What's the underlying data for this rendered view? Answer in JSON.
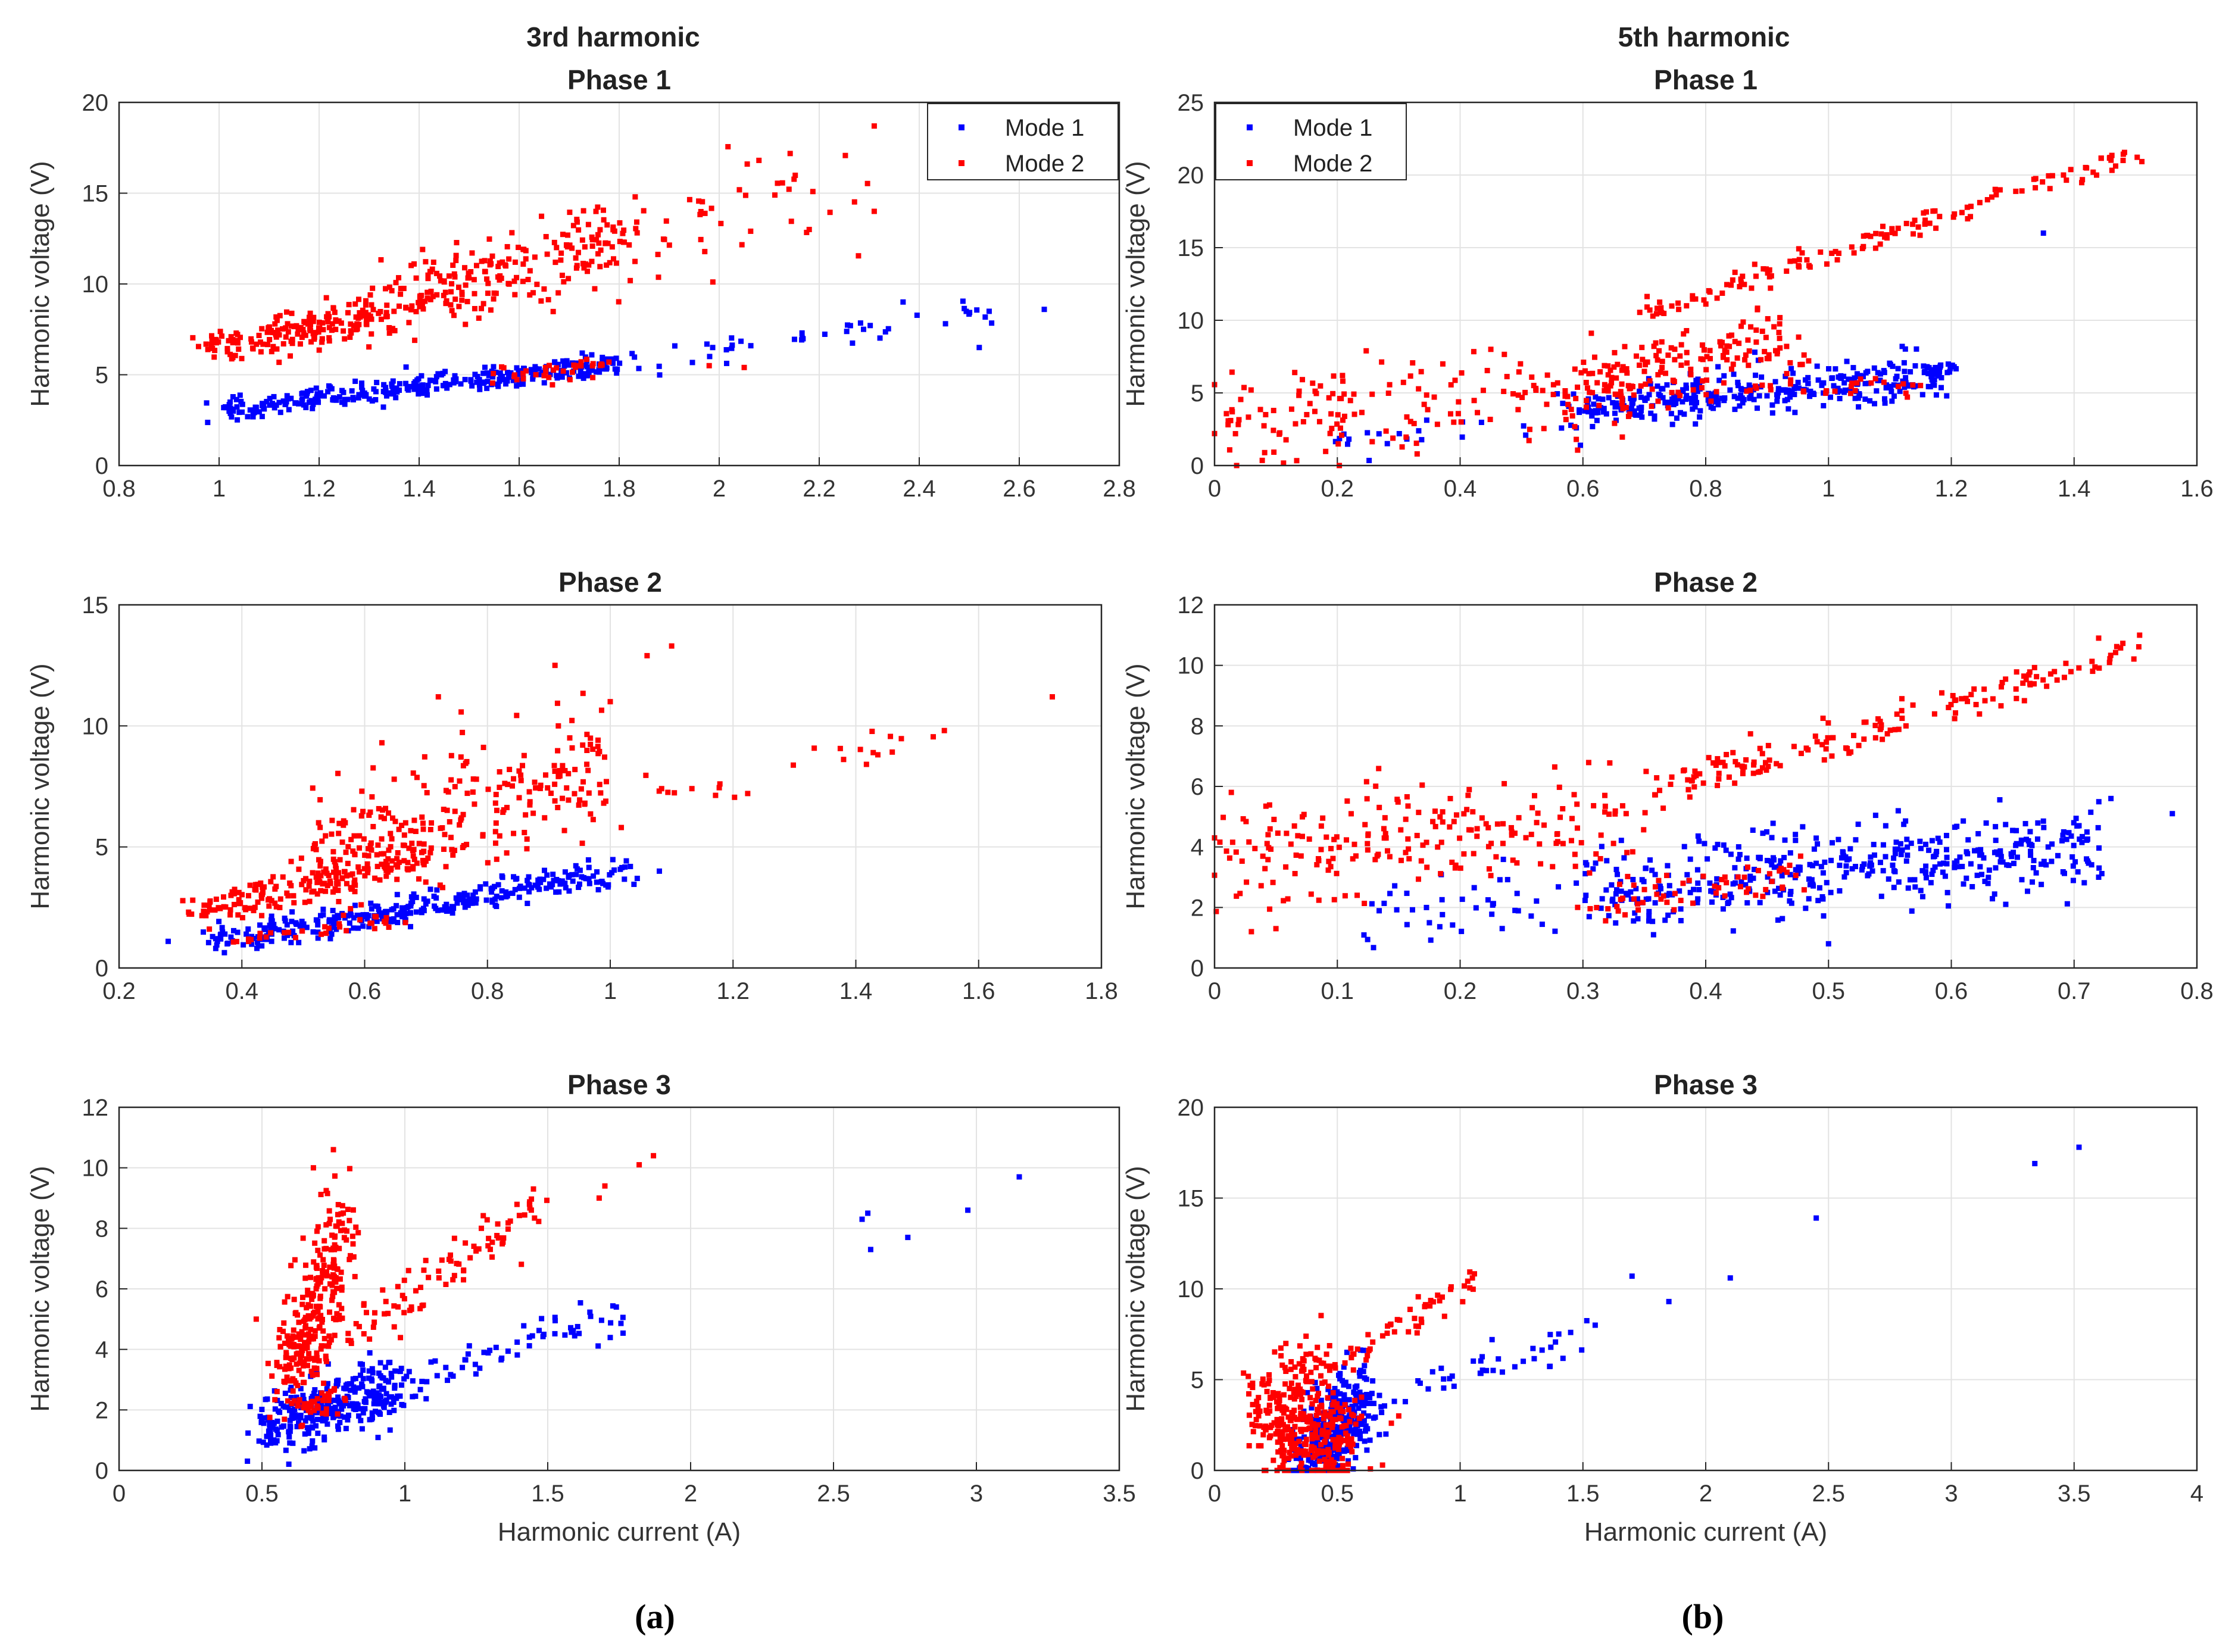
{
  "figure": {
    "panel_labels": [
      "(a)",
      "(b)"
    ],
    "column_titles": [
      "3rd harmonic",
      "5th harmonic"
    ]
  },
  "colors": {
    "mode1": "#0000ff",
    "mode2": "#ff0000",
    "grid": "#e3e3e3",
    "axis": "#262626"
  },
  "chart_data": [
    {
      "type": "scatter",
      "column_title": "3rd harmonic",
      "title": "Phase 1",
      "xlabel": "",
      "ylabel": "Harmonic voltage (V)",
      "xlim": [
        0.8,
        2.8
      ],
      "ylim": [
        0,
        20
      ],
      "xticks": [
        "0.8",
        "1",
        "1.2",
        "1.4",
        "1.6",
        "1.8",
        "2",
        "2.2",
        "2.4",
        "2.6",
        "2.8"
      ],
      "yticks": [
        "0",
        "5",
        "10",
        "15",
        "20"
      ],
      "legend": {
        "position": "top-right",
        "entries": [
          "Mode 1",
          "Mode 2"
        ]
      },
      "series": [
        {
          "name": "Mode 1",
          "color": "#0000ff",
          "clusters": [
            {
              "x0": 1.0,
              "x1": 1.8,
              "y0": 3.1,
              "y1": 5.6,
              "n": 320,
              "noise": 0.3
            },
            {
              "x0": 1.8,
              "x1": 2.55,
              "y0": 5.6,
              "y1": 8.6,
              "n": 45,
              "noise": 0.4
            }
          ],
          "points": [
            [
              2.65,
              8.6
            ],
            [
              2.52,
              6.5
            ]
          ]
        },
        {
          "name": "Mode 2",
          "color": "#ff0000",
          "clusters": [
            {
              "x0": 0.98,
              "x1": 1.3,
              "y0": 6.4,
              "y1": 8.3,
              "n": 170,
              "noise": 0.55
            },
            {
              "x0": 1.3,
              "x1": 1.8,
              "y0": 8.5,
              "y1": 12.5,
              "n": 230,
              "noise": 1.1
            },
            {
              "x0": 1.82,
              "x1": 2.3,
              "y0": 13.0,
              "y1": 15.5,
              "n": 45,
              "noise": 1.6
            },
            {
              "x0": 1.5,
              "x1": 1.78,
              "y0": 4.6,
              "y1": 5.6,
              "n": 35,
              "noise": 0.3
            }
          ],
          "points": [
            [
              2.31,
              18.7
            ],
            [
              2.31,
              14.0
            ],
            [
              2.18,
              13.0
            ],
            [
              2.05,
              5.4
            ],
            [
              1.98,
              5.5
            ]
          ]
        }
      ]
    },
    {
      "type": "scatter",
      "column_title": "5th harmonic",
      "title": "Phase 1",
      "xlabel": "",
      "ylabel": "Harmonic voltage (V)",
      "xlim": [
        0,
        1.6
      ],
      "ylim": [
        0,
        25
      ],
      "xticks": [
        "0",
        "0.2",
        "0.4",
        "0.6",
        "0.8",
        "1",
        "1.2",
        "1.4",
        "1.6"
      ],
      "yticks": [
        "0",
        "5",
        "10",
        "15",
        "20",
        "25"
      ],
      "legend": {
        "position": "top-left",
        "entries": [
          "Mode 1",
          "Mode 2"
        ]
      },
      "series": [
        {
          "name": "Mode 1",
          "color": "#0000ff",
          "clusters": [
            {
              "x0": 0.6,
              "x1": 1.2,
              "y0": 3.8,
              "y1": 6.3,
              "n": 360,
              "noise": 0.65
            },
            {
              "x0": 0.2,
              "x1": 0.6,
              "y0": 1.5,
              "y1": 3.8,
              "n": 25,
              "noise": 0.8
            }
          ],
          "points": [
            [
              1.12,
              8.2
            ],
            [
              0.88,
              7.8
            ],
            [
              0.82,
              6.8
            ],
            [
              1.35,
              16.0
            ]
          ]
        },
        {
          "name": "Mode 2",
          "color": "#ff0000",
          "clusters": [
            {
              "x0": 0.0,
              "x1": 0.6,
              "y0": 3.0,
              "y1": 5.0,
              "n": 140,
              "noise": 1.6
            },
            {
              "x0": 0.58,
              "x1": 0.95,
              "y0": 5.0,
              "y1": 9.0,
              "n": 180,
              "noise": 1.5
            },
            {
              "x0": 0.7,
              "x1": 1.5,
              "y0": 10.5,
              "y1": 21.5,
              "n": 140,
              "noise": 0.35
            },
            {
              "x0": 0.9,
              "x1": 1.15,
              "y0": 5.0,
              "y1": 5.8,
              "n": 25,
              "noise": 0.4
            }
          ],
          "points": [
            [
              0.0,
              2.2
            ],
            [
              0.33,
              0.8
            ],
            [
              0.45,
              8.0
            ]
          ]
        }
      ]
    },
    {
      "type": "scatter",
      "column_title": "3rd harmonic",
      "title": "Phase 2",
      "xlabel": "",
      "ylabel": "Harmonic voltage (V)",
      "xlim": [
        0.2,
        1.8
      ],
      "ylim": [
        0,
        15
      ],
      "xticks": [
        "0.2",
        "0.4",
        "0.6",
        "0.8",
        "1",
        "1.2",
        "1.4",
        "1.6",
        "1.8"
      ],
      "yticks": [
        "0",
        "5",
        "10",
        "15"
      ],
      "series": [
        {
          "name": "Mode 1",
          "color": "#0000ff",
          "clusters": [
            {
              "x0": 0.35,
              "x1": 1.02,
              "y0": 1.0,
              "y1": 4.0,
              "n": 320,
              "noise": 0.3
            }
          ],
          "points": [
            [
              0.28,
              1.1
            ],
            [
              1.08,
              4.0
            ]
          ]
        },
        {
          "name": "Mode 2",
          "color": "#ff0000",
          "clusters": [
            {
              "x0": 0.33,
              "x1": 0.7,
              "y0": 2.3,
              "y1": 4.7,
              "n": 170,
              "noise": 0.35
            },
            {
              "x0": 0.5,
              "x1": 1.0,
              "y0": 4.5,
              "y1": 8.5,
              "n": 260,
              "noise": 1.2
            },
            {
              "x0": 1.0,
              "x1": 1.55,
              "y0": 7.0,
              "y1": 9.8,
              "n": 25,
              "noise": 0.5
            },
            {
              "x0": 0.38,
              "x1": 0.65,
              "y0": 1.1,
              "y1": 1.9,
              "n": 30,
              "noise": 0.2
            }
          ],
          "points": [
            [
              1.72,
              11.2
            ],
            [
              1.1,
              13.3
            ],
            [
              1.06,
              12.9
            ],
            [
              0.91,
              12.5
            ],
            [
              0.72,
              11.2
            ],
            [
              0.32,
              2.8
            ],
            [
              1.0,
              11.0
            ]
          ]
        }
      ]
    },
    {
      "type": "scatter",
      "column_title": "5th harmonic",
      "title": "Phase 2",
      "xlabel": "",
      "ylabel": "Harmonic voltage (V)",
      "xlim": [
        0,
        0.8
      ],
      "ylim": [
        0,
        12
      ],
      "xticks": [
        "0",
        "0.1",
        "0.2",
        "0.3",
        "0.4",
        "0.5",
        "0.6",
        "0.7",
        "0.8"
      ],
      "yticks": [
        "0",
        "2",
        "4",
        "6",
        "8",
        "10",
        "12"
      ],
      "series": [
        {
          "name": "Mode 1",
          "color": "#0000ff",
          "clusters": [
            {
              "x0": 0.3,
              "x1": 0.72,
              "y0": 2.5,
              "y1": 4.0,
              "n": 420,
              "noise": 0.65
            },
            {
              "x0": 0.12,
              "x1": 0.3,
              "y0": 1.5,
              "y1": 2.5,
              "n": 40,
              "noise": 0.55
            }
          ],
          "points": [
            [
              0.78,
              5.1
            ],
            [
              0.73,
              5.6
            ],
            [
              0.72,
              3.0
            ],
            [
              0.5,
              0.8
            ]
          ]
        },
        {
          "name": "Mode 2",
          "color": "#ff0000",
          "clusters": [
            {
              "x0": 0.0,
              "x1": 0.35,
              "y0": 3.5,
              "y1": 5.2,
              "n": 210,
              "noise": 0.9
            },
            {
              "x0": 0.35,
              "x1": 0.75,
              "y0": 5.7,
              "y1": 10.5,
              "n": 160,
              "noise": 0.3
            },
            {
              "x0": 0.3,
              "x1": 0.48,
              "y0": 2.2,
              "y1": 3.0,
              "n": 60,
              "noise": 0.45
            }
          ],
          "points": [
            [
              0.03,
              1.2
            ],
            [
              0.05,
              1.3
            ],
            [
              0.72,
              10.9
            ]
          ]
        }
      ]
    },
    {
      "type": "scatter",
      "column_title": "3rd harmonic",
      "title": "Phase 3",
      "xlabel": "Harmonic current (A)",
      "ylabel": "Harmonic voltage (V)",
      "xlim": [
        0,
        3.5
      ],
      "ylim": [
        0,
        12
      ],
      "xticks": [
        "0",
        "0.5",
        "1",
        "1.5",
        "2",
        "2.5",
        "3",
        "3.5"
      ],
      "yticks": [
        "0",
        "2",
        "4",
        "6",
        "8",
        "10",
        "12"
      ],
      "series": [
        {
          "name": "Mode 1",
          "color": "#0000ff",
          "clusters": [
            {
              "x0": 0.5,
              "x1": 1.0,
              "y0": 1.4,
              "y1": 2.8,
              "n": 300,
              "noise": 0.55
            },
            {
              "x0": 1.0,
              "x1": 1.75,
              "y0": 2.8,
              "y1": 5.2,
              "n": 60,
              "noise": 0.3
            }
          ],
          "points": [
            [
              2.6,
              8.3
            ],
            [
              2.62,
              8.5
            ],
            [
              2.63,
              7.3
            ],
            [
              2.76,
              7.7
            ],
            [
              2.97,
              8.6
            ],
            [
              3.15,
              9.7
            ],
            [
              1.74,
              5.4
            ]
          ]
        },
        {
          "name": "Mode 2",
          "color": "#ff0000",
          "clusters": [
            {
              "x0": 0.6,
              "x1": 0.8,
              "y0": 3.5,
              "y1": 8.0,
              "n": 250,
              "noise": 0.9
            },
            {
              "x0": 0.5,
              "x1": 1.5,
              "y0": 2.8,
              "y1": 8.8,
              "n": 120,
              "noise": 0.45
            },
            {
              "x0": 0.6,
              "x1": 0.75,
              "y0": 1.8,
              "y1": 2.5,
              "n": 40,
              "noise": 0.35
            }
          ],
          "points": [
            [
              0.75,
              10.6
            ],
            [
              0.68,
              10.0
            ],
            [
              1.87,
              10.4
            ],
            [
              1.82,
              10.1
            ],
            [
              1.7,
              9.4
            ],
            [
              1.68,
              9.0
            ],
            [
              1.45,
              9.3
            ],
            [
              0.48,
              5.0
            ]
          ]
        }
      ]
    },
    {
      "type": "scatter",
      "column_title": "5th harmonic",
      "title": "Phase 3",
      "xlabel": "Harmonic current (A)",
      "ylabel": "Harmonic voltage (V)",
      "xlim": [
        0,
        4
      ],
      "ylim": [
        0,
        20
      ],
      "xticks": [
        "0",
        "0.5",
        "1",
        "1.5",
        "2",
        "2.5",
        "3",
        "3.5",
        "4"
      ],
      "yticks": [
        "0",
        "5",
        "10",
        "15",
        "20"
      ],
      "series": [
        {
          "name": "Mode 1",
          "color": "#0000ff",
          "clusters": [
            {
              "x0": 0.35,
              "x1": 0.62,
              "y0": 0.3,
              "y1": 4.0,
              "n": 300,
              "noise": 1.3
            },
            {
              "x0": 0.6,
              "x1": 1.5,
              "y0": 3.5,
              "y1": 7.5,
              "n": 45,
              "noise": 0.45
            }
          ],
          "points": [
            [
              3.52,
              17.8
            ],
            [
              3.34,
              16.9
            ],
            [
              2.45,
              13.9
            ],
            [
              2.1,
              10.6
            ],
            [
              1.85,
              9.3
            ],
            [
              1.7,
              10.7
            ],
            [
              1.55,
              8.0
            ],
            [
              1.45,
              7.6
            ]
          ]
        },
        {
          "name": "Mode 2",
          "color": "#ff0000",
          "clusters": [
            {
              "x0": 0.2,
              "x1": 0.55,
              "y0": 3.0,
              "y1": 1.5,
              "n": 330,
              "noise": 1.5
            },
            {
              "x0": 0.3,
              "x1": 1.05,
              "y0": 4.0,
              "y1": 10.6,
              "n": 60,
              "noise": 0.35
            },
            {
              "x0": 0.2,
              "x1": 0.45,
              "y0": 4.0,
              "y1": 6.8,
              "n": 30,
              "noise": 0.7
            }
          ],
          "points": [
            [
              1.05,
              10.6
            ],
            [
              0.75,
              3.0
            ],
            [
              0.72,
              2.6
            ],
            [
              0.17,
              2.8
            ]
          ]
        }
      ]
    }
  ]
}
